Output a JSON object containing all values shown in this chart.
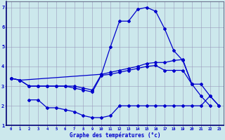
{
  "xlabel": "Graphe des températures (°c)",
  "hours": [
    0,
    1,
    2,
    3,
    4,
    5,
    6,
    7,
    8,
    9,
    10,
    11,
    12,
    13,
    14,
    15,
    16,
    17,
    18,
    19,
    20,
    21,
    22,
    23
  ],
  "line_peak": [
    3.4,
    3.3,
    null,
    null,
    null,
    null,
    null,
    null,
    null,
    null,
    3.6,
    5.0,
    6.3,
    6.3,
    6.9,
    7.0,
    6.8,
    5.9,
    4.8,
    4.3,
    3.1,
    2.5,
    2.0,
    null
  ],
  "line_upper": [
    3.4,
    3.3,
    3.0,
    3.0,
    3.0,
    3.0,
    3.0,
    3.0,
    2.9,
    2.8,
    3.6,
    3.7,
    3.8,
    3.9,
    4.0,
    4.15,
    4.2,
    4.2,
    4.3,
    4.35,
    3.1,
    null,
    null,
    null
  ],
  "line_mid": [
    3.4,
    3.3,
    3.0,
    3.0,
    3.0,
    3.0,
    3.0,
    2.9,
    2.8,
    2.7,
    3.55,
    3.6,
    3.7,
    3.8,
    3.9,
    4.0,
    4.05,
    3.8,
    3.8,
    3.8,
    3.1,
    3.1,
    2.5,
    2.0
  ],
  "line_low": [
    null,
    null,
    2.3,
    2.3,
    1.9,
    1.9,
    1.8,
    1.7,
    1.5,
    1.4,
    1.4,
    1.5,
    2.0,
    2.0,
    2.0,
    2.0,
    2.0,
    2.0,
    2.0,
    2.0,
    2.0,
    2.0,
    2.5,
    2.0
  ],
  "bg_color": "#cce8ec",
  "grid_color": "#9999bb",
  "line_color": "#0000cc",
  "ylim": [
    1,
    7.3
  ],
  "xlim": [
    -0.5,
    23.5
  ],
  "yticks": [
    1,
    2,
    3,
    4,
    5,
    6,
    7
  ],
  "xticks": [
    0,
    1,
    2,
    3,
    4,
    5,
    6,
    7,
    8,
    9,
    10,
    11,
    12,
    13,
    14,
    15,
    16,
    17,
    18,
    19,
    20,
    21,
    22,
    23
  ]
}
